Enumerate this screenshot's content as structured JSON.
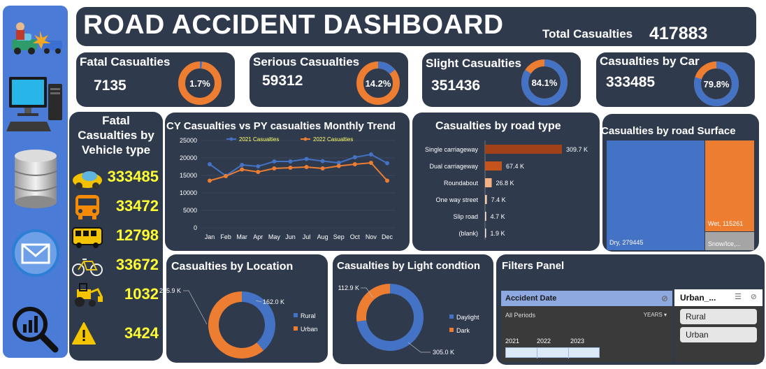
{
  "header": {
    "title": "ROAD ACCIDENT DASHBOARD",
    "total_label": "Total Casualties",
    "total_value": "417883"
  },
  "sidebar": {
    "icons": [
      "car-crash-icon",
      "computer-icon",
      "database-icon",
      "mail-icon",
      "analytics-search-icon"
    ]
  },
  "kpis": [
    {
      "title": "Fatal Casualties",
      "value": "7135",
      "pct_label": "1.7%",
      "pct": 1.7
    },
    {
      "title": "Serious Casualties",
      "value": "59312",
      "pct_label": "14.2%",
      "pct": 14.2
    },
    {
      "title": "Slight Casualties",
      "value": "351436",
      "pct_label": "84.1%",
      "pct": 84.1
    },
    {
      "title": "Casualties by Car",
      "value": "333485",
      "pct_label": "79.8%",
      "pct": 79.8
    }
  ],
  "vehicle": {
    "title_line1": "Fatal",
    "title_line2": "Casualties by",
    "title_line3": "Vehicle type",
    "rows": [
      {
        "icon": "car-icon",
        "value": "333485"
      },
      {
        "icon": "bus-icon",
        "value": "33472"
      },
      {
        "icon": "van-icon",
        "value": "12798"
      },
      {
        "icon": "bicycle-icon",
        "value": "33672"
      },
      {
        "icon": "tractor-icon",
        "value": "1032"
      },
      {
        "icon": "warning-icon",
        "value": "3424"
      }
    ]
  },
  "colors": {
    "blue": "#4472c4",
    "orange": "#ed7d31",
    "panel": "#2f3a4d",
    "yellow": "#ffff33",
    "dark_red": "#a0411a"
  },
  "chart_data": [
    {
      "type": "line",
      "title": "CY Casualties vs PY casualties Monthly Trend",
      "categories": [
        "Jan",
        "Feb",
        "Mar",
        "Apr",
        "May",
        "Jun",
        "Jul",
        "Aug",
        "Sep",
        "Oct",
        "Nov",
        "Dec"
      ],
      "series": [
        {
          "name": "2021 Casualties",
          "values": [
            18200,
            14900,
            18000,
            17600,
            19000,
            19000,
            19700,
            19100,
            18600,
            20200,
            21000,
            18500
          ]
        },
        {
          "name": "2022 Casualties",
          "values": [
            13500,
            14800,
            16700,
            16000,
            17000,
            17200,
            17400,
            17000,
            17700,
            18200,
            18600,
            13500
          ]
        }
      ],
      "y_ticks": [
        "0",
        "5000",
        "10000",
        "15000",
        "20000",
        "25000"
      ],
      "ylim": [
        0,
        25000
      ],
      "legend": "top"
    },
    {
      "type": "bar",
      "title": "Casualties by road type",
      "categories": [
        "Single carriageway",
        "Dual carriageway",
        "Roundabout",
        "One way street",
        "Slip road",
        "(blank)"
      ],
      "values": [
        309.7,
        67.4,
        26.8,
        7.4,
        4.7,
        1.9
      ],
      "labels": [
        "309.7 K",
        "67.4 K",
        "26.8 K",
        "7.4 K",
        "4.7 K",
        "1.9 K"
      ]
    },
    {
      "type": "heatmap",
      "title": "Casualties by road Surface",
      "cells": [
        {
          "label": "Dry, 279445",
          "value": 279445
        },
        {
          "label": "Wet, 115261",
          "value": 115261
        },
        {
          "label": "Snow/Ice,...",
          "value": 23177
        }
      ]
    },
    {
      "type": "pie",
      "title": "Casualties by Location",
      "slices": [
        {
          "name": "Rural",
          "value": 162.0,
          "label": "162.0 K"
        },
        {
          "name": "Urban",
          "value": 255.9,
          "label": "255.9 K"
        }
      ],
      "legend": "right"
    },
    {
      "type": "pie",
      "title": "Casualties by Light condtion",
      "slices": [
        {
          "name": "Daylight",
          "value": 305.0,
          "label": "305.0 K"
        },
        {
          "name": "Dark",
          "value": 112.9,
          "label": "112.9 K"
        }
      ],
      "legend": "right"
    }
  ],
  "filters": {
    "title": "Filters Panel",
    "date_header": "Accident  Date",
    "all_periods": "All Periods",
    "period_unit": "YEARS",
    "years": [
      "2021",
      "2022",
      "2023"
    ],
    "urban_header": "Urban_...",
    "urban_options": [
      "Rural",
      "Urban"
    ]
  }
}
